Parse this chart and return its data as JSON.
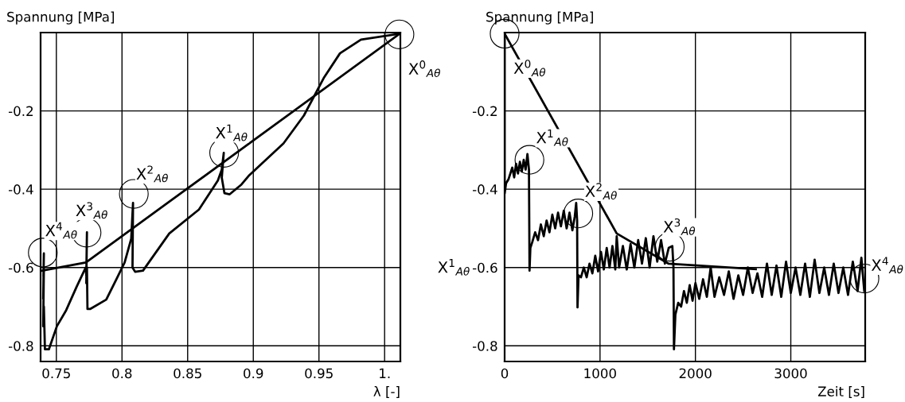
{
  "chart_data": [
    {
      "type": "line",
      "xlabel": "λ [-]",
      "ylabel": "Spannung [MPa]",
      "xlim": [
        0.738,
        1.012
      ],
      "ylim": [
        -0.84,
        0
      ],
      "xticks": [
        0.75,
        0.8,
        0.85,
        0.9,
        0.95,
        {
          "value": 1,
          "label": "1."
        }
      ],
      "yticks": [
        {
          "value": -0.8,
          "label": "-0.8"
        },
        {
          "value": -0.6,
          "label": "-0.6"
        },
        {
          "value": -0.4,
          "label": "-0.4"
        },
        {
          "value": -0.2,
          "label": "-0.2"
        }
      ],
      "grid": true,
      "legend": false,
      "marker": "none",
      "line_style": "solid",
      "series": [
        {
          "color": "#000000",
          "x": [
            1.0115,
            0.982,
            0.966,
            0.954,
            0.9385,
            0.923,
            0.897,
            0.891,
            0.882,
            0.878,
            0.876,
            0.8775,
            0.876,
            0.873,
            0.8586,
            0.836,
            0.816,
            0.81,
            0.808,
            0.8084,
            0.807,
            0.802,
            0.796,
            0.788,
            0.7757,
            0.7737,
            0.7733,
            0.7728,
            0.7733,
            0.7728,
            0.7724,
            0.7656,
            0.7575,
            0.7504,
            0.7443,
            0.7413,
            0.7405,
            0.74,
            0.7405,
            0.74,
            0.7405,
            0.7402
          ],
          "values": [
            -0.003,
            -0.018,
            -0.053,
            -0.114,
            -0.212,
            -0.283,
            -0.364,
            -0.388,
            -0.413,
            -0.41,
            -0.371,
            -0.307,
            -0.35,
            -0.378,
            -0.452,
            -0.513,
            -0.608,
            -0.611,
            -0.6,
            -0.435,
            -0.527,
            -0.587,
            -0.628,
            -0.682,
            -0.706,
            -0.706,
            -0.6,
            -0.64,
            -0.51,
            -0.62,
            -0.6,
            -0.648,
            -0.709,
            -0.75,
            -0.809,
            -0.809,
            -0.7,
            -0.75,
            -0.6,
            -0.68,
            -0.564,
            -0.62
          ]
        },
        {
          "color": "#000000",
          "x": [
            1.0115,
            0.7725,
            0.7393
          ],
          "values": [
            -0.003,
            -0.587,
            -0.608
          ]
        }
      ],
      "annotations": [
        {
          "text": "X$^{0}$$_{Aθ}$",
          "x": 1.0113,
          "y": -0.0047
        },
        {
          "text": "X$^{1}$$_{Aθ}$",
          "x": 0.8778,
          "y": -0.307
        },
        {
          "text": "X$^{2}$$_{Aθ}$",
          "x": 0.809,
          "y": -0.412
        },
        {
          "text": "X$^{3}$$_{Aθ}$",
          "x": 0.773,
          "y": -0.511
        },
        {
          "text": "X$^{4}$$_{Aθ}$",
          "x": 0.7397,
          "y": -0.562
        }
      ]
    },
    {
      "type": "line",
      "xlabel": "Zeit [s]",
      "ylabel": "Spannung [MPa]",
      "xlim": [
        0,
        3780
      ],
      "ylim": [
        -0.84,
        0
      ],
      "xticks": [
        0,
        1000,
        2000,
        3000
      ],
      "yticks": [
        {
          "value": -0.8,
          "label": "-0.8"
        },
        {
          "value": -0.6,
          "label": "-0.6"
        },
        {
          "value": -0.4,
          "label": "-0.4"
        },
        {
          "value": -0.2,
          "label": "-0.2"
        }
      ],
      "grid": true,
      "legend": false,
      "marker": "none",
      "line_style": "solid",
      "series": [
        {
          "color": "#000000",
          "x": [
            0,
            0,
            15,
            40,
            60,
            80,
            100,
            120,
            140,
            160,
            180,
            200,
            220,
            239,
            255,
            261,
            270,
            290,
            320,
            350,
            380,
            410,
            440,
            470,
            500,
            530,
            560,
            590,
            620,
            650,
            680,
            710,
            735,
            750,
            760,
            764,
            775,
            800,
            830,
            860,
            890,
            920,
            950,
            980,
            1010,
            1040,
            1070,
            1100,
            1130,
            1160,
            1175,
            1200,
            1240,
            1280,
            1320,
            1360,
            1400,
            1440,
            1480,
            1520,
            1560,
            1600,
            1640,
            1680,
            1720,
            1758,
            1770,
            1775,
            1790,
            1820,
            1850,
            1880,
            1910,
            1940,
            1970,
            2000,
            2040,
            2080,
            2120,
            2160,
            2200,
            2250,
            2300,
            2350,
            2400,
            2450,
            2500,
            2550,
            2600,
            2650,
            2700,
            2750,
            2800,
            2850,
            2900,
            2950,
            3000,
            3050,
            3100,
            3150,
            3200,
            3250,
            3300,
            3350,
            3400,
            3450,
            3500,
            3550,
            3600,
            3650,
            3700,
            3740,
            3770
          ],
          "values": [
            -0.003,
            -0.411,
            -0.385,
            -0.375,
            -0.36,
            -0.345,
            -0.37,
            -0.335,
            -0.36,
            -0.33,
            -0.355,
            -0.325,
            -0.35,
            -0.31,
            -0.35,
            -0.608,
            -0.55,
            -0.535,
            -0.51,
            -0.53,
            -0.49,
            -0.52,
            -0.48,
            -0.51,
            -0.465,
            -0.5,
            -0.46,
            -0.495,
            -0.455,
            -0.5,
            -0.46,
            -0.505,
            -0.47,
            -0.435,
            -0.48,
            -0.702,
            -0.62,
            -0.625,
            -0.6,
            -0.625,
            -0.59,
            -0.615,
            -0.57,
            -0.61,
            -0.56,
            -0.605,
            -0.55,
            -0.6,
            -0.545,
            -0.605,
            -0.52,
            -0.6,
            -0.545,
            -0.605,
            -0.54,
            -0.6,
            -0.53,
            -0.59,
            -0.525,
            -0.6,
            -0.52,
            -0.585,
            -0.53,
            -0.59,
            -0.55,
            -0.545,
            -0.6,
            -0.809,
            -0.72,
            -0.69,
            -0.7,
            -0.66,
            -0.69,
            -0.645,
            -0.685,
            -0.64,
            -0.68,
            -0.63,
            -0.675,
            -0.6,
            -0.675,
            -0.625,
            -0.67,
            -0.61,
            -0.68,
            -0.62,
            -0.67,
            -0.6,
            -0.665,
            -0.615,
            -0.675,
            -0.59,
            -0.67,
            -0.595,
            -0.675,
            -0.585,
            -0.665,
            -0.6,
            -0.67,
            -0.59,
            -0.675,
            -0.58,
            -0.665,
            -0.6,
            -0.67,
            -0.59,
            -0.665,
            -0.6,
            -0.67,
            -0.585,
            -0.66,
            -0.575,
            -0.66
          ]
        },
        {
          "color": "#000000",
          "x": [
            0,
            1175,
            1717,
            2633
          ],
          "values": [
            -0.003,
            -0.513,
            -0.59,
            -0.604
          ]
        }
      ],
      "annotations": [
        {
          "text": "X$^{0}$$_{Aθ}$",
          "x": 0,
          "y": -0.003
        },
        {
          "text": "X$^{1}$$_{Aθ}$",
          "x": 260,
          "y": -0.325
        },
        {
          "text": "X$^{2}$$_{Aθ}$",
          "x": 772,
          "y": -0.462
        },
        {
          "text": "X$^{3}$$_{Aθ}$",
          "x": 1731,
          "y": -0.547
        },
        {
          "text": "X$^{4}$$_{Aθ}$",
          "x": 3772,
          "y": -0.628
        },
        "X$^{1}$$_{Aθ}$"
      ]
    }
  ]
}
